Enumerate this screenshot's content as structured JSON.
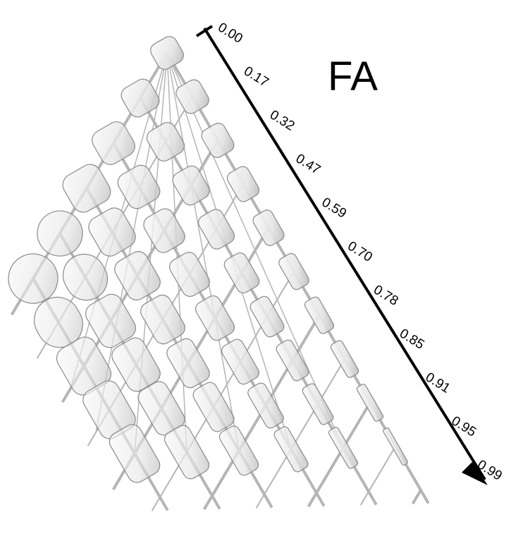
{
  "title": "FA",
  "scale": {
    "ticks": [
      "0.00",
      "0.17",
      "0.32",
      "0.47",
      "0.59",
      "0.70",
      "0.78",
      "0.85",
      "0.91",
      "0.95",
      "0.99"
    ]
  }
}
